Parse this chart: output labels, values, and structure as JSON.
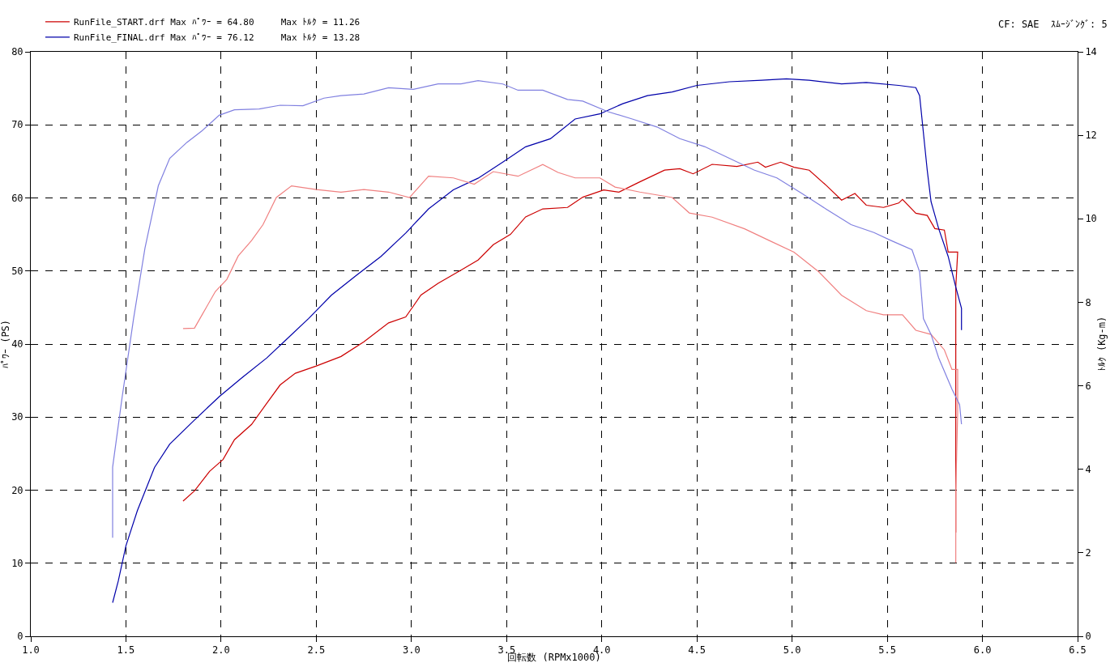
{
  "chart_data": {
    "type": "line",
    "xlabel": "回転数 (RPMx1000)",
    "ylabel": "ﾊﾟﾜｰ (PS)",
    "y2label": "ﾄﾙｸ (Kg-m)",
    "annotations": [
      "CF: SAE  ｽﾑｰｼﾞﾝｸﾞ: 5"
    ],
    "xlim": [
      1.0,
      6.5
    ],
    "xticks": [
      {
        "value": 1.0,
        "label": "1.0"
      },
      {
        "value": 1.5,
        "label": "1.5"
      },
      {
        "value": 2.0,
        "label": "2.0"
      },
      {
        "value": 2.5,
        "label": "2.5"
      },
      {
        "value": 3.0,
        "label": "3.0"
      },
      {
        "value": 3.5,
        "label": "3.5"
      },
      {
        "value": 4.0,
        "label": "4.0"
      },
      {
        "value": 4.5,
        "label": "4.5"
      },
      {
        "value": 5.0,
        "label": "5.0"
      },
      {
        "value": 5.5,
        "label": "5.5"
      },
      {
        "value": 6.0,
        "label": "6.0"
      },
      {
        "value": 6.5,
        "label": "6.5"
      }
    ],
    "ylim": [
      0,
      80
    ],
    "yticks": [
      0,
      10,
      20,
      30,
      40,
      50,
      60,
      70,
      80
    ],
    "y2lim": [
      0,
      14
    ],
    "y2ticks": [
      0,
      2,
      4,
      6,
      8,
      10,
      12,
      14
    ],
    "grid": true,
    "legend": "top left",
    "line_style": "solid",
    "marker": "none",
    "series": [
      {
        "name": "RunFile_START.drf Max ﾊﾟﾜｰ = 64.80     Max ﾄﾙｸ = 11.26",
        "color": "#cc0000",
        "x": [
          1.8,
          1.86,
          1.94,
          2.01,
          2.07,
          2.16,
          2.24,
          2.31,
          2.39,
          2.5,
          2.63,
          2.75,
          2.88,
          2.97,
          3.05,
          3.14,
          3.26,
          3.35,
          3.43,
          3.52,
          3.6,
          3.69,
          3.82,
          3.9,
          4.01,
          4.09,
          4.2,
          4.33,
          4.41,
          4.48,
          4.58,
          4.71,
          4.82,
          4.86,
          4.94,
          5.01,
          5.09,
          5.18,
          5.26,
          5.33,
          5.39,
          5.48,
          5.56,
          5.58,
          5.65,
          5.71,
          5.75,
          5.8,
          5.82,
          5.87,
          5.86,
          5.86,
          5.86,
          5.86
        ],
        "values": [
          18.5,
          19.9,
          22.6,
          24.2,
          26.9,
          29.0,
          31.9,
          34.4,
          36.0,
          37.0,
          38.3,
          40.3,
          42.9,
          43.7,
          46.7,
          48.3,
          50.1,
          51.5,
          53.6,
          55.0,
          57.4,
          58.5,
          58.7,
          60.1,
          61.1,
          60.8,
          62.2,
          63.8,
          64.0,
          63.3,
          64.6,
          64.3,
          64.9,
          64.2,
          64.9,
          64.2,
          63.8,
          61.7,
          59.7,
          60.6,
          59.0,
          58.7,
          59.3,
          59.8,
          57.9,
          57.6,
          55.8,
          55.6,
          52.6,
          52.6,
          47.8,
          30.9,
          25.8,
          14.2
        ]
      },
      {
        "color": "#f08080",
        "axis": "y2",
        "x": [
          1.8,
          1.86,
          1.9,
          1.97,
          2.03,
          2.09,
          2.16,
          2.22,
          2.29,
          2.37,
          2.5,
          2.63,
          2.75,
          2.88,
          2.99,
          3.09,
          3.22,
          3.33,
          3.43,
          3.56,
          3.69,
          3.77,
          3.86,
          3.99,
          4.07,
          4.2,
          4.37,
          4.46,
          4.58,
          4.75,
          4.88,
          5.01,
          5.14,
          5.26,
          5.39,
          5.48,
          5.58,
          5.65,
          5.73,
          5.8,
          5.84,
          5.87,
          5.87,
          5.86,
          5.86
        ],
        "values": [
          7.37,
          7.38,
          7.7,
          8.26,
          8.55,
          9.11,
          9.48,
          9.86,
          10.51,
          10.79,
          10.7,
          10.64,
          10.7,
          10.64,
          10.51,
          11.02,
          10.98,
          10.83,
          11.13,
          11.02,
          11.3,
          11.11,
          10.98,
          10.98,
          10.76,
          10.64,
          10.51,
          10.14,
          10.04,
          9.76,
          9.48,
          9.2,
          8.73,
          8.17,
          7.8,
          7.7,
          7.7,
          7.33,
          7.23,
          6.86,
          6.39,
          6.39,
          5.36,
          3.49,
          1.76
        ]
      },
      {
        "name": "RunFile_FINAL.drf Max ﾊﾟﾜｰ = 76.12     Max ﾄﾙｸ = 13.28",
        "color": "#0000aa",
        "x": [
          1.43,
          1.46,
          1.5,
          1.56,
          1.65,
          1.73,
          1.86,
          1.99,
          2.11,
          2.24,
          2.33,
          2.46,
          2.58,
          2.71,
          2.84,
          2.97,
          3.09,
          3.22,
          3.35,
          3.48,
          3.6,
          3.73,
          3.86,
          3.99,
          4.11,
          4.24,
          4.37,
          4.5,
          4.67,
          4.84,
          4.97,
          5.09,
          5.26,
          5.39,
          5.56,
          5.65,
          5.67,
          5.71,
          5.73,
          5.77,
          5.82,
          5.86,
          5.89,
          5.89
        ],
        "values": [
          4.6,
          7.6,
          12.4,
          17.2,
          23.1,
          26.3,
          29.6,
          32.8,
          35.4,
          38.1,
          40.3,
          43.5,
          46.7,
          49.4,
          52.0,
          55.2,
          58.5,
          61.1,
          62.7,
          64.9,
          67.0,
          68.1,
          70.8,
          71.5,
          72.9,
          74.0,
          74.5,
          75.4,
          75.9,
          76.1,
          76.3,
          76.1,
          75.6,
          75.8,
          75.4,
          75.1,
          74.0,
          63.8,
          59.5,
          55.8,
          52.0,
          47.8,
          44.9,
          41.9
        ]
      },
      {
        "color": "#8080e0",
        "axis": "y2",
        "x": [
          1.43,
          1.43,
          1.48,
          1.54,
          1.6,
          1.67,
          1.73,
          1.82,
          1.9,
          1.99,
          2.07,
          2.2,
          2.31,
          2.43,
          2.54,
          2.63,
          2.75,
          2.88,
          3.01,
          3.14,
          3.26,
          3.35,
          3.48,
          3.56,
          3.69,
          3.82,
          3.9,
          4.03,
          4.16,
          4.29,
          4.41,
          4.54,
          4.67,
          4.8,
          4.92,
          5.05,
          5.18,
          5.31,
          5.43,
          5.52,
          5.63,
          5.67,
          5.69,
          5.73,
          5.77,
          5.84,
          5.88,
          5.89
        ],
        "values": [
          2.36,
          4.05,
          5.73,
          7.61,
          9.3,
          10.79,
          11.45,
          11.83,
          12.11,
          12.48,
          12.61,
          12.63,
          12.72,
          12.71,
          12.89,
          12.95,
          12.99,
          13.14,
          13.1,
          13.23,
          13.23,
          13.31,
          13.23,
          13.08,
          13.08,
          12.86,
          12.82,
          12.57,
          12.39,
          12.2,
          11.92,
          11.73,
          11.45,
          11.17,
          10.98,
          10.61,
          10.23,
          9.86,
          9.67,
          9.48,
          9.26,
          8.73,
          7.61,
          7.23,
          6.67,
          5.92,
          5.55,
          5.08
        ]
      }
    ]
  }
}
